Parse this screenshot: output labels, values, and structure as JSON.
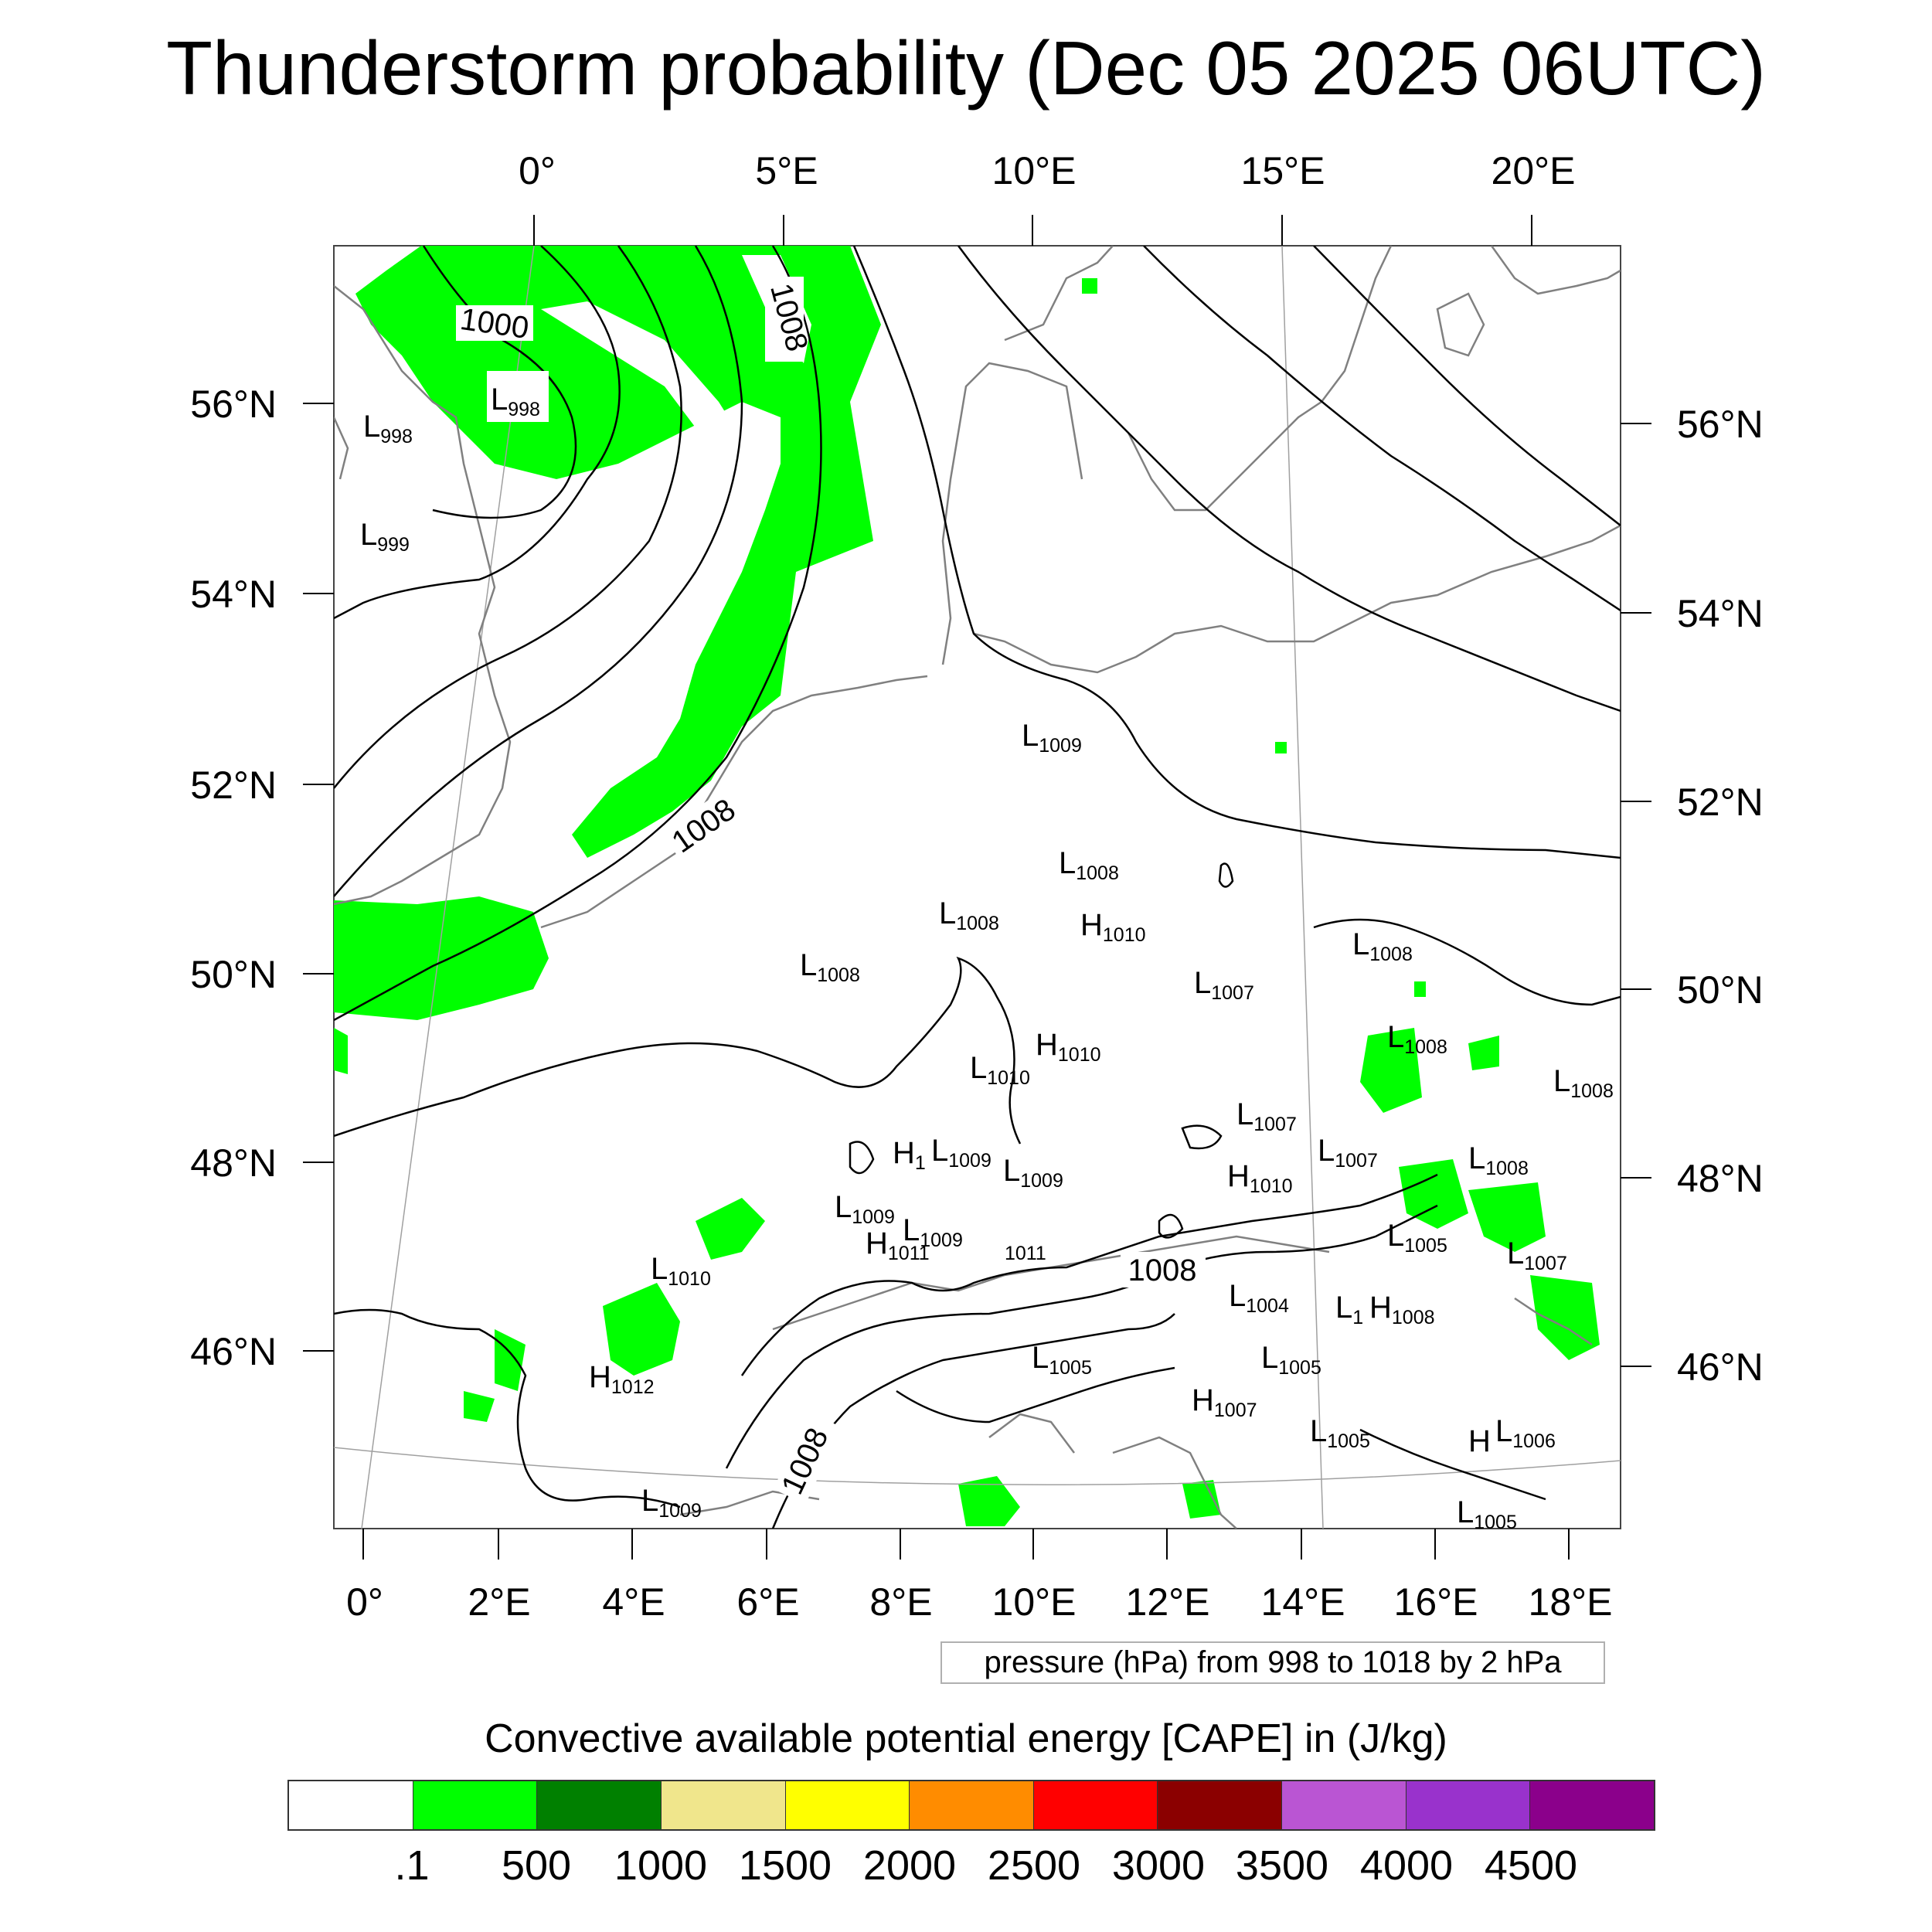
{
  "title": "Thunderstorm probability (Dec 05 2025 06UTC)",
  "top_lon_labels": [
    "0°",
    "5°E",
    "10°E",
    "15°E",
    "20°E"
  ],
  "left_lat_labels": [
    "56°N",
    "54°N",
    "52°N",
    "50°N",
    "48°N",
    "46°N"
  ],
  "right_lat_labels": [
    "56°N",
    "54°N",
    "52°N",
    "50°N",
    "48°N",
    "46°N"
  ],
  "bottom_lon_labels": [
    "0°",
    "2°E",
    "4°E",
    "6°E",
    "8°E",
    "10°E",
    "12°E",
    "14°E",
    "16°E",
    "18°E"
  ],
  "contour_labels": [
    "1000",
    "1008",
    "1008",
    "1008",
    "1008"
  ],
  "pressure_centers": [
    {
      "type": "L",
      "value": "998"
    },
    {
      "type": "L",
      "value": "998"
    },
    {
      "type": "L",
      "value": "999"
    },
    {
      "type": "L",
      "value": "1009"
    },
    {
      "type": "L",
      "value": "1008"
    },
    {
      "type": "L",
      "value": "1008"
    },
    {
      "type": "H",
      "value": "1010"
    },
    {
      "type": "L",
      "value": "1008"
    },
    {
      "type": "L",
      "value": "1008"
    },
    {
      "type": "L",
      "value": "1007"
    },
    {
      "type": "H",
      "value": "1010"
    },
    {
      "type": "L",
      "value": "1010"
    },
    {
      "type": "L",
      "value": "1008"
    },
    {
      "type": "L",
      "value": "1008"
    },
    {
      "type": "L",
      "value": "1007"
    },
    {
      "type": "L",
      "value": "1007"
    },
    {
      "type": "L",
      "value": "1008"
    },
    {
      "type": "H",
      "value": "1"
    },
    {
      "type": "L",
      "value": "1009"
    },
    {
      "type": "L",
      "value": "1009"
    },
    {
      "type": "H",
      "value": "1010"
    },
    {
      "type": "L",
      "value": "1009"
    },
    {
      "type": "L",
      "value": "1009"
    },
    {
      "type": "H",
      "value": "1011"
    },
    {
      "type": "",
      "value": "1011"
    },
    {
      "type": "L",
      "value": "1010"
    },
    {
      "type": "L",
      "value": "1005"
    },
    {
      "type": "L",
      "value": "1007"
    },
    {
      "type": "L",
      "value": "1004"
    },
    {
      "type": "L",
      "value": "1"
    },
    {
      "type": "H",
      "value": "1008"
    },
    {
      "type": "H",
      "value": "1012"
    },
    {
      "type": "L",
      "value": "1005"
    },
    {
      "type": "L",
      "value": "1005"
    },
    {
      "type": "H",
      "value": "1007"
    },
    {
      "type": "L",
      "value": "1005"
    },
    {
      "type": "H",
      "value": ""
    },
    {
      "type": "L",
      "value": "1006"
    },
    {
      "type": "L",
      "value": "1009"
    },
    {
      "type": "L",
      "value": "1005"
    }
  ],
  "info_box": "pressure (hPa) from 998 to 1018 by 2 hPa",
  "colorbar": {
    "title": "Convective available potential energy [CAPE] in (J/kg)",
    "colors": [
      "#ffffff",
      "#00ff00",
      "#008000",
      "#f0e68c",
      "#ffff00",
      "#ff8c00",
      "#ff0000",
      "#8b0000",
      "#ba55d3",
      "#9932cc",
      "#8b008b"
    ],
    "labels": [
      ".1",
      "500",
      "1000",
      "1500",
      "2000",
      "2500",
      "3000",
      "3500",
      "4000",
      "4500"
    ]
  },
  "colors": {
    "cape_fill": "#00ff00",
    "coastline": "#808080",
    "isobar": "#000000"
  }
}
